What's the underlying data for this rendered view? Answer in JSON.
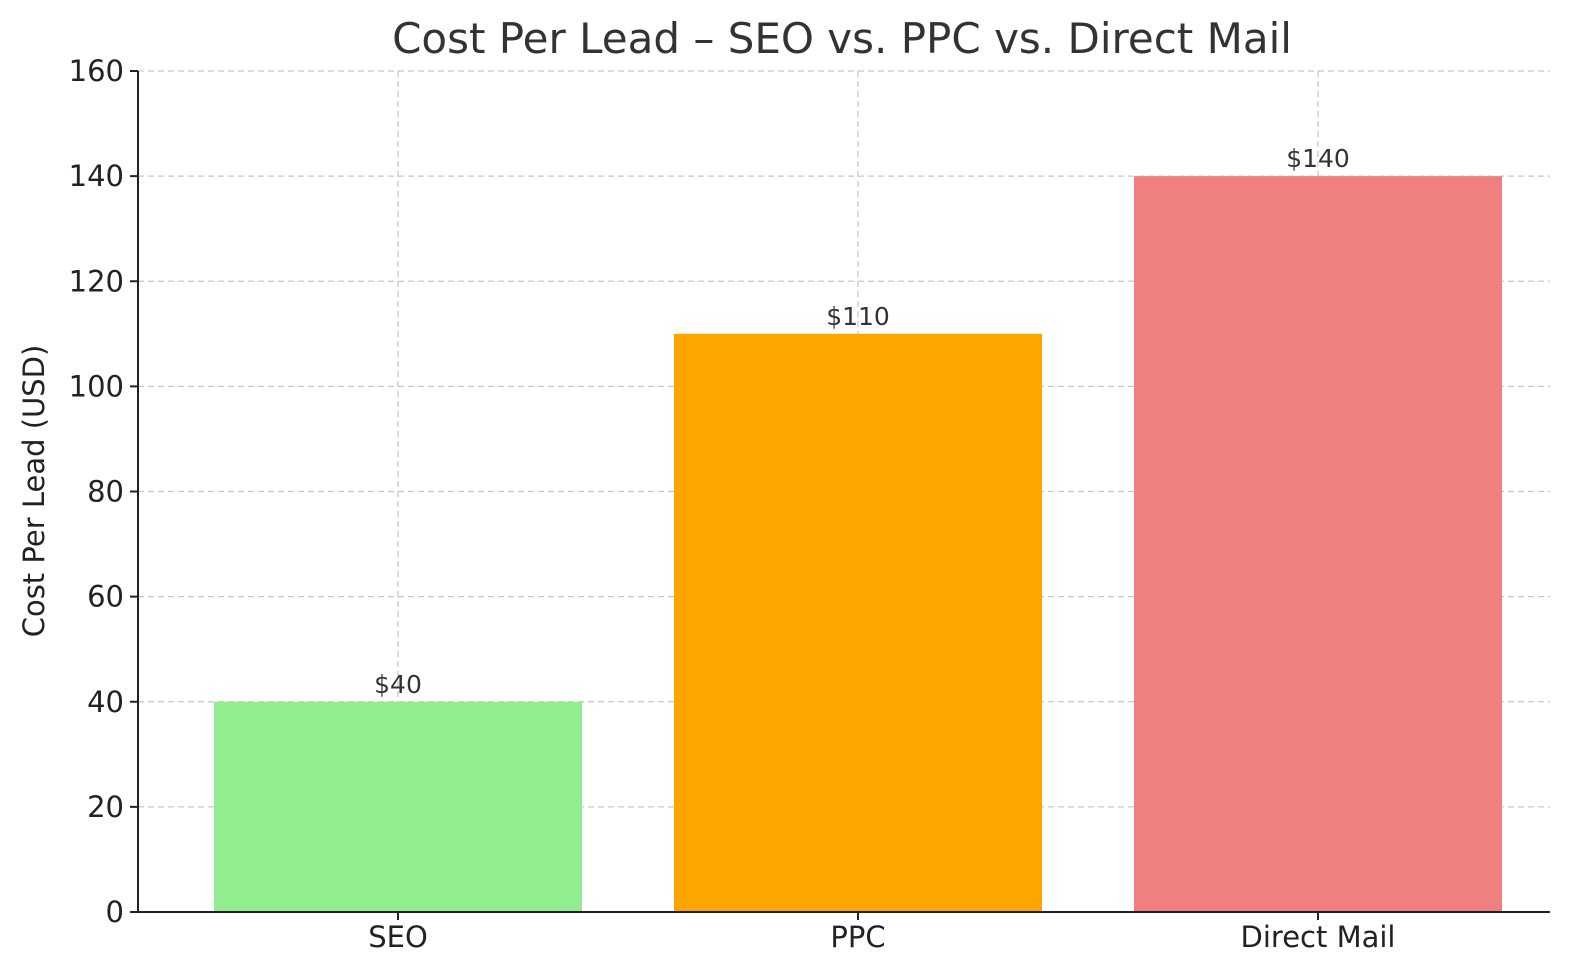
{
  "chart_data": {
    "type": "bar",
    "title": "Cost Per Lead – SEO vs. PPC vs. Direct Mail",
    "xlabel": "",
    "ylabel": "Cost Per Lead (USD)",
    "categories": [
      "SEO",
      "PPC",
      "Direct Mail"
    ],
    "values": [
      40,
      110,
      140
    ],
    "data_labels": [
      "$40",
      "$110",
      "$140"
    ],
    "colors": [
      "#90ee90",
      "#ffa500",
      "#f08080"
    ],
    "ylim": [
      0,
      160
    ],
    "yticks": [
      0,
      20,
      40,
      60,
      80,
      100,
      120,
      140,
      160
    ],
    "grid": true
  }
}
